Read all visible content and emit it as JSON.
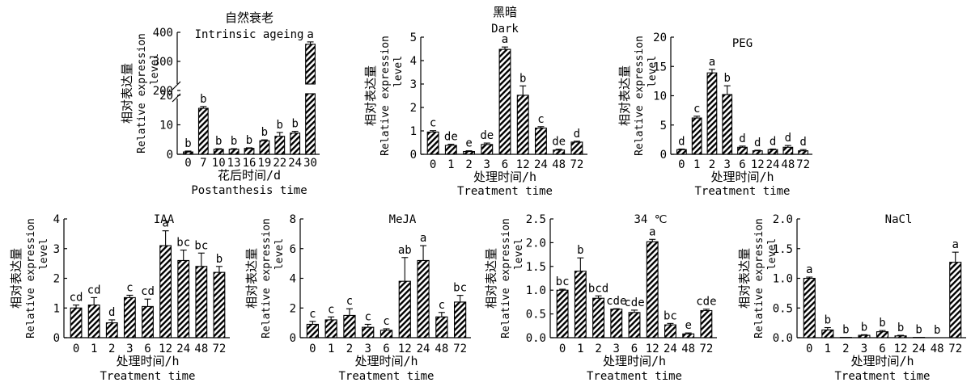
{
  "chart_data": [
    {
      "type": "bar",
      "title_cn": "自然衰老",
      "title": "Intrinsic ageing",
      "ylabel_cn": "相对表达量",
      "ylabel": "Relative expression level",
      "xlabel_cn": "花后时间/d",
      "xlabel": "Postanthesis time",
      "categories": [
        "0",
        "7",
        "10",
        "13",
        "16",
        "19",
        "22",
        "24",
        "30"
      ],
      "values": [
        0.8,
        15.6,
        1.7,
        1.7,
        2.0,
        4.6,
        6.1,
        7.2,
        359
      ],
      "errors": [
        0.3,
        0.6,
        0.2,
        0.2,
        0.2,
        0.3,
        1.3,
        0.6,
        8
      ],
      "letters": [
        "b",
        "b",
        "b",
        "b",
        "b",
        "b",
        "b",
        "b",
        "a"
      ],
      "y_axis_break": true,
      "ylim_lower": [
        0,
        20
      ],
      "ylim_upper": [
        200,
        400
      ],
      "yticks_lower": [
        0,
        10,
        20
      ],
      "yticks_upper": [
        200,
        300,
        400
      ]
    },
    {
      "type": "bar",
      "title_cn": "黑暗",
      "title": "Dark",
      "ylabel_cn": "相对表达量",
      "ylabel": "Relative expression level",
      "xlabel_cn": "处理时间/h",
      "xlabel": "Treatment time",
      "categories": [
        "0",
        "1",
        "2",
        "3",
        "6",
        "12",
        "24",
        "48",
        "72"
      ],
      "values": [
        0.95,
        0.38,
        0.12,
        0.42,
        4.48,
        2.52,
        1.12,
        0.18,
        0.52
      ],
      "errors": [
        0.06,
        0.05,
        0.03,
        0.06,
        0.1,
        0.4,
        0.06,
        0.04,
        0.04
      ],
      "letters": [
        "c",
        "de",
        "e",
        "de",
        "a",
        "b",
        "c",
        "de",
        "d"
      ],
      "ylim": [
        0,
        5
      ],
      "yticks": [
        0,
        1,
        2,
        3,
        4,
        5
      ]
    },
    {
      "type": "bar",
      "title": "PEG",
      "ylabel_cn": "相对表达量",
      "ylabel": "Relative expression level",
      "xlabel_cn": "处理时间/h",
      "xlabel": "Treatment time",
      "categories": [
        "0",
        "1",
        "2",
        "3",
        "6",
        "12",
        "24",
        "48",
        "72"
      ],
      "values": [
        0.8,
        6.2,
        13.9,
        10.2,
        1.2,
        0.6,
        0.8,
        1.2,
        0.6
      ],
      "errors": [
        0.1,
        0.3,
        0.6,
        1.5,
        0.2,
        0.1,
        0.1,
        0.3,
        0.2
      ],
      "letters": [
        "d",
        "c",
        "a",
        "b",
        "d",
        "d",
        "d",
        "d",
        "d"
      ],
      "ylim": [
        0,
        20
      ],
      "yticks": [
        0,
        5,
        10,
        15,
        20
      ]
    },
    {
      "type": "bar",
      "title": "IAA",
      "ylabel_cn": "相对表达量",
      "ylabel": "Relative expression level",
      "xlabel_cn": "处理时间/h",
      "xlabel": "Treatment time",
      "categories": [
        "0",
        "1",
        "2",
        "3",
        "6",
        "12",
        "24",
        "48",
        "72"
      ],
      "values": [
        1.0,
        1.1,
        0.5,
        1.35,
        1.05,
        3.1,
        2.6,
        2.4,
        2.2
      ],
      "errors": [
        0.1,
        0.25,
        0.1,
        0.08,
        0.25,
        0.5,
        0.35,
        0.45,
        0.2
      ],
      "letters": [
        "cd",
        "cd",
        "d",
        "c",
        "cd",
        "a",
        "bc",
        "bc",
        "b"
      ],
      "ylim": [
        0,
        4
      ],
      "yticks": [
        0,
        1,
        2,
        3,
        4
      ]
    },
    {
      "type": "bar",
      "title": "MeJA",
      "ylabel_cn": "相对表达量",
      "ylabel": "Relative expression level",
      "xlabel_cn": "处理时间/h",
      "xlabel": "Treatment time",
      "categories": [
        "0",
        "1",
        "2",
        "3",
        "6",
        "12",
        "24",
        "48",
        "72"
      ],
      "values": [
        0.9,
        1.2,
        1.5,
        0.7,
        0.5,
        3.8,
        5.2,
        1.4,
        2.4
      ],
      "errors": [
        0.2,
        0.2,
        0.45,
        0.2,
        0.1,
        1.6,
        1.0,
        0.3,
        0.45
      ],
      "letters": [
        "c",
        "c",
        "c",
        "c",
        "c",
        "ab",
        "a",
        "c",
        "bc"
      ],
      "ylim": [
        0,
        8
      ],
      "yticks": [
        0,
        2,
        4,
        6,
        8
      ]
    },
    {
      "type": "bar",
      "title": "34 ℃",
      "ylabel_cn": "相对表达量",
      "ylabel": "Relative expression level",
      "xlabel_cn": "处理时间/h",
      "xlabel": "Treatment time",
      "categories": [
        "0",
        "1",
        "2",
        "3",
        "6",
        "12",
        "24",
        "48",
        "72"
      ],
      "values": [
        1.0,
        1.4,
        0.83,
        0.6,
        0.53,
        2.02,
        0.27,
        0.08,
        0.57
      ],
      "errors": [
        0.02,
        0.28,
        0.05,
        0.01,
        0.05,
        0.05,
        0.03,
        0.02,
        0.03
      ],
      "letters": [
        "bc",
        "b",
        "bcd",
        "cde",
        "cde",
        "a",
        "bc",
        "e",
        "cde"
      ],
      "ylim": [
        0,
        2.5
      ],
      "yticks": [
        "0.0",
        "0.5",
        "1.0",
        "1.5",
        "2.0",
        "2.5"
      ]
    },
    {
      "type": "bar",
      "title": "NaCl",
      "ylabel_cn": "相对表达量",
      "ylabel": "Relative expression level",
      "xlabel_cn": "处理时间/h",
      "xlabel": "Treatment time",
      "categories": [
        "0",
        "1",
        "2",
        "3",
        "6",
        "12",
        "24",
        "48",
        "72"
      ],
      "values": [
        1.0,
        0.13,
        0.005,
        0.04,
        0.1,
        0.03,
        0.005,
        0.0,
        1.27
      ],
      "errors": [
        0.02,
        0.04,
        0.0,
        0.01,
        0.02,
        0.01,
        0.0,
        0.0,
        0.17
      ],
      "letters": [
        "a",
        "b",
        "b",
        "b",
        "b",
        "b",
        "b",
        "b",
        "a"
      ],
      "ylim": [
        0,
        2.0
      ],
      "yticks": [
        "0.0",
        "0.5",
        "1.0",
        "1.5",
        "2.0"
      ]
    }
  ]
}
